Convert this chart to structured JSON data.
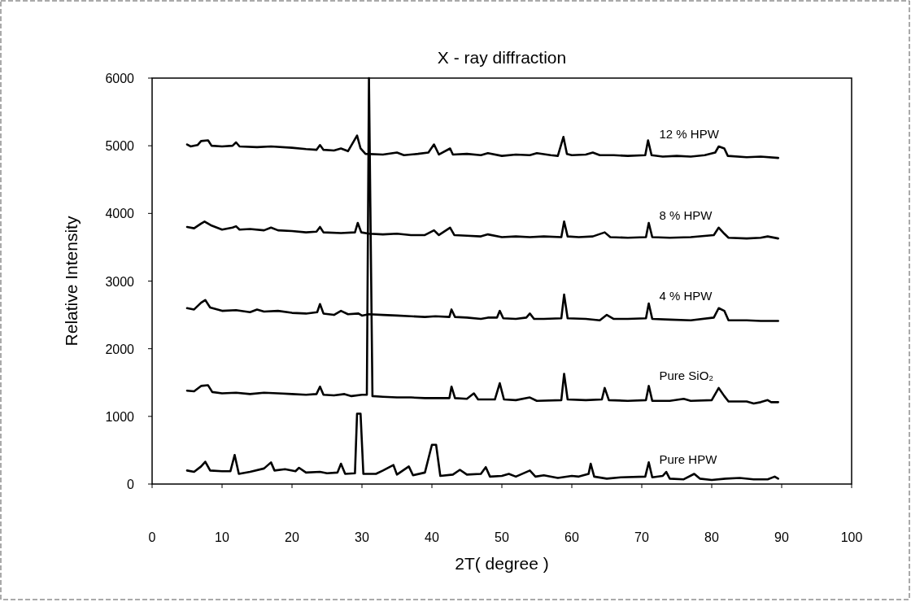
{
  "chart_data": {
    "type": "line",
    "title": "X - ray diffraction",
    "xlabel": "2T( degree )",
    "ylabel": "Relative Intensity",
    "xlim": [
      0,
      100
    ],
    "xticks": [
      0,
      10,
      20,
      30,
      40,
      50,
      60,
      70,
      80,
      90,
      100
    ],
    "ylim": [
      0,
      6000
    ],
    "yticks": [
      0,
      1000,
      2000,
      3000,
      4000,
      5000,
      6000
    ],
    "grid": false,
    "marker": "none",
    "line_style": "solid",
    "series": [
      {
        "name": "12 % HPW",
        "color": "#000000",
        "x": [
          5,
          5.5,
          6.5,
          7,
          8,
          8.5,
          10,
          11.5,
          12,
          12.5,
          15,
          17,
          20,
          22,
          23.5,
          24,
          24.5,
          26,
          27,
          28,
          29.3,
          29.8,
          30.5,
          33,
          35,
          36,
          38,
          39.5,
          40.3,
          41,
          42.6,
          43,
          45,
          47,
          48,
          50,
          52,
          54,
          55,
          57,
          58,
          58.8,
          59.3,
          60,
          62,
          63,
          64,
          66,
          68,
          70.5,
          70.9,
          71.4,
          73,
          75,
          77,
          79,
          80.5,
          81,
          81.8,
          82.3,
          85,
          87,
          89.5
        ],
        "values": [
          5020,
          4990,
          5010,
          5070,
          5080,
          5000,
          4990,
          5000,
          5050,
          4990,
          4980,
          4990,
          4970,
          4950,
          4940,
          5010,
          4940,
          4930,
          4960,
          4920,
          5150,
          4960,
          4880,
          4870,
          4900,
          4860,
          4880,
          4900,
          5020,
          4870,
          4960,
          4870,
          4880,
          4860,
          4890,
          4850,
          4870,
          4860,
          4890,
          4860,
          4850,
          5130,
          4880,
          4860,
          4870,
          4900,
          4860,
          4860,
          4850,
          4860,
          5080,
          4860,
          4840,
          4850,
          4840,
          4860,
          4900,
          4990,
          4960,
          4850,
          4830,
          4840,
          4820
        ]
      },
      {
        "name": "8 % HPW",
        "color": "#000000",
        "x": [
          5,
          6,
          7,
          7.5,
          8.5,
          10,
          11.5,
          12,
          12.5,
          14,
          16,
          17,
          18,
          20,
          22,
          23.5,
          24,
          24.5,
          27,
          29,
          29.4,
          29.9,
          31,
          33,
          35,
          37,
          39,
          40.3,
          41,
          42.6,
          43.2,
          45,
          47,
          48,
          50,
          52,
          54,
          56,
          58.5,
          58.9,
          59.4,
          61,
          63,
          64.7,
          65.5,
          68,
          70.6,
          71,
          71.5,
          74,
          77,
          80.3,
          81,
          81.8,
          82.4,
          85,
          87,
          88,
          89.5
        ],
        "values": [
          3800,
          3780,
          3850,
          3880,
          3820,
          3760,
          3790,
          3810,
          3760,
          3770,
          3750,
          3790,
          3750,
          3740,
          3720,
          3730,
          3800,
          3720,
          3710,
          3720,
          3860,
          3720,
          3700,
          3690,
          3700,
          3680,
          3680,
          3750,
          3680,
          3790,
          3680,
          3670,
          3660,
          3690,
          3650,
          3660,
          3650,
          3660,
          3650,
          3880,
          3660,
          3650,
          3660,
          3720,
          3650,
          3640,
          3650,
          3860,
          3650,
          3640,
          3650,
          3680,
          3790,
          3700,
          3640,
          3630,
          3640,
          3660,
          3630
        ]
      },
      {
        "name": "4 % HPW",
        "color": "#000000",
        "x": [
          5,
          6,
          7,
          7.6,
          8.3,
          10,
          12,
          14,
          15,
          16,
          18,
          20,
          22,
          23.6,
          24,
          24.5,
          26,
          27,
          28,
          29.5,
          30,
          31,
          33,
          35,
          37,
          39,
          40.5,
          42.5,
          42.8,
          43.3,
          45,
          47,
          48,
          49.3,
          49.7,
          50.2,
          52,
          53.5,
          54,
          54.6,
          56,
          58.5,
          58.9,
          59.4,
          62,
          64,
          65,
          66,
          68,
          70.6,
          71,
          71.5,
          74,
          77,
          80.3,
          81,
          81.8,
          82.4,
          85,
          87,
          89.5
        ],
        "values": [
          2600,
          2580,
          2680,
          2720,
          2610,
          2560,
          2570,
          2540,
          2580,
          2550,
          2560,
          2530,
          2520,
          2540,
          2660,
          2520,
          2500,
          2560,
          2510,
          2520,
          2490,
          2510,
          2500,
          2490,
          2480,
          2470,
          2480,
          2470,
          2580,
          2470,
          2460,
          2440,
          2460,
          2460,
          2560,
          2450,
          2440,
          2460,
          2520,
          2440,
          2440,
          2450,
          2800,
          2450,
          2440,
          2420,
          2500,
          2440,
          2440,
          2450,
          2670,
          2440,
          2430,
          2420,
          2460,
          2600,
          2560,
          2420,
          2420,
          2410,
          2410
        ]
      },
      {
        "name": "Pure SiO₂",
        "color": "#000000",
        "x": [
          5,
          6,
          7,
          8,
          8.6,
          10,
          12,
          14,
          16,
          18,
          20,
          22,
          23.5,
          24,
          24.5,
          26,
          27.5,
          28.5,
          30,
          30.7,
          31,
          31.5,
          33,
          35,
          37,
          39,
          41,
          42.5,
          42.8,
          43.3,
          45,
          46,
          46.6,
          49,
          49.7,
          50.3,
          52,
          54,
          55,
          58.5,
          58.9,
          59.4,
          62,
          64.3,
          64.7,
          65.3,
          68,
          70.6,
          71,
          71.5,
          74,
          76,
          77,
          80,
          81,
          81.8,
          82.4,
          85,
          86,
          87,
          88,
          88.5,
          89.5
        ],
        "values": [
          1380,
          1370,
          1450,
          1460,
          1360,
          1340,
          1350,
          1330,
          1350,
          1340,
          1330,
          1320,
          1330,
          1440,
          1320,
          1310,
          1330,
          1300,
          1320,
          1320,
          6000,
          1300,
          1290,
          1280,
          1280,
          1270,
          1270,
          1270,
          1440,
          1270,
          1260,
          1340,
          1250,
          1250,
          1490,
          1250,
          1240,
          1280,
          1230,
          1240,
          1630,
          1250,
          1240,
          1250,
          1420,
          1240,
          1230,
          1240,
          1450,
          1230,
          1230,
          1260,
          1230,
          1240,
          1420,
          1300,
          1220,
          1220,
          1190,
          1210,
          1240,
          1210,
          1210
        ]
      },
      {
        "name": "Pure HPW",
        "color": "#000000",
        "x": [
          5,
          6,
          7,
          7.6,
          8.3,
          10,
          11.2,
          11.8,
          12.4,
          14,
          16,
          17,
          17.5,
          19,
          20.5,
          21,
          22,
          24,
          25,
          26.5,
          27,
          27.6,
          29,
          29.3,
          29.8,
          30.2,
          32,
          33,
          34.5,
          35,
          36.7,
          37.3,
          39,
          40,
          40.6,
          41.2,
          43,
          44,
          45,
          47,
          47.7,
          48.3,
          50,
          51,
          52,
          54,
          54.8,
          56,
          58,
          60,
          61,
          62.4,
          62.7,
          63.2,
          65,
          67,
          70.5,
          71,
          71.5,
          73,
          73.5,
          74,
          76,
          77.5,
          78.3,
          80,
          82,
          84,
          86,
          88,
          89,
          89.5
        ],
        "values": [
          200,
          180,
          260,
          330,
          200,
          190,
          190,
          430,
          150,
          180,
          230,
          320,
          200,
          220,
          190,
          240,
          170,
          180,
          160,
          170,
          300,
          150,
          160,
          1040,
          1040,
          150,
          150,
          200,
          280,
          140,
          260,
          130,
          170,
          580,
          580,
          120,
          140,
          210,
          140,
          150,
          250,
          110,
          120,
          150,
          110,
          200,
          110,
          130,
          90,
          120,
          110,
          150,
          300,
          110,
          80,
          100,
          110,
          320,
          100,
          120,
          180,
          80,
          70,
          150,
          80,
          60,
          80,
          90,
          70,
          70,
          110,
          80
        ]
      }
    ]
  }
}
